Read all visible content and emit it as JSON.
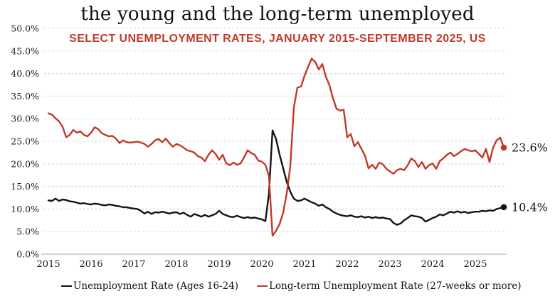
{
  "chart_data": {
    "type": "line",
    "title": "the young and the long-term unemployed",
    "subtitle": "SELECT UNEMPLOYMENT RATES, JANUARY 2015-SEPTEMBER 2025, US",
    "subtitle_color": "#c03a2b",
    "region": "US",
    "x_start": "2015-01",
    "x_end": "2025-09",
    "x_tick_labels": [
      "2015",
      "2016",
      "2017",
      "2018",
      "2019",
      "2020",
      "2021",
      "2022",
      "2023",
      "2024",
      "2025"
    ],
    "y_ticks": [
      0,
      5,
      10,
      15,
      20,
      25,
      30,
      35,
      40,
      45,
      50
    ],
    "y_tick_labels": [
      "0.0%",
      "5.0%",
      "10.0%",
      "15.0%",
      "20.0%",
      "25.0%",
      "30.0%",
      "35.0%",
      "40.0%",
      "45.0%",
      "50.0%"
    ],
    "ylim": [
      0,
      50
    ],
    "grid": "horizontal-dashed",
    "legend_position": "bottom",
    "frequency": "monthly",
    "series": [
      {
        "key": "ages-16-24",
        "name": "Unemployment Rate (Ages 16-24)",
        "color": "#141414",
        "end_label": "10.4%",
        "values": [
          11.9,
          11.8,
          12.3,
          11.8,
          12.1,
          12.0,
          11.7,
          11.6,
          11.4,
          11.2,
          11.3,
          11.1,
          11.0,
          11.2,
          11.1,
          10.9,
          10.8,
          11.0,
          10.9,
          10.7,
          10.6,
          10.4,
          10.4,
          10.2,
          10.1,
          10.0,
          9.6,
          9.0,
          9.4,
          8.9,
          9.3,
          9.2,
          9.4,
          9.2,
          9.0,
          9.2,
          9.3,
          8.9,
          9.2,
          8.7,
          8.3,
          8.9,
          8.6,
          8.3,
          8.7,
          8.3,
          8.6,
          8.9,
          9.6,
          8.9,
          8.6,
          8.3,
          8.2,
          8.5,
          8.2,
          8.0,
          8.2,
          8.0,
          8.1,
          7.9,
          7.7,
          7.3,
          13.5,
          27.4,
          25.5,
          22.0,
          19.0,
          16.0,
          13.8,
          12.3,
          11.8,
          11.9,
          12.3,
          11.9,
          11.5,
          11.2,
          10.7,
          11.0,
          10.4,
          10.0,
          9.4,
          9.0,
          8.7,
          8.5,
          8.4,
          8.6,
          8.3,
          8.2,
          8.4,
          8.1,
          8.3,
          8.0,
          8.2,
          8.0,
          8.1,
          7.9,
          7.8,
          6.9,
          6.5,
          6.8,
          7.5,
          8.0,
          8.6,
          8.4,
          8.3,
          8.0,
          7.2,
          7.6,
          8.0,
          8.3,
          8.8,
          8.6,
          9.0,
          9.4,
          9.2,
          9.5,
          9.2,
          9.4,
          9.1,
          9.3,
          9.4,
          9.4,
          9.6,
          9.5,
          9.7,
          9.6,
          10.0,
          10.2,
          10.4
        ]
      },
      {
        "key": "long-term",
        "name": "Long-term Unemployment Rate (27-weeks or more)",
        "color": "#c03a2b",
        "end_label": "23.6%",
        "values": [
          31.2,
          30.9,
          30.1,
          29.4,
          28.2,
          25.9,
          26.4,
          27.5,
          26.9,
          27.2,
          26.4,
          26.1,
          26.9,
          28.1,
          27.7,
          26.8,
          26.4,
          26.1,
          26.2,
          25.6,
          24.6,
          25.2,
          24.8,
          24.7,
          24.8,
          24.9,
          24.7,
          24.4,
          23.8,
          24.4,
          25.2,
          25.5,
          24.8,
          25.6,
          24.6,
          23.8,
          24.4,
          24.1,
          23.6,
          23.0,
          22.8,
          22.5,
          21.7,
          21.4,
          20.6,
          22.0,
          23.0,
          22.2,
          20.9,
          22.0,
          20.1,
          19.7,
          20.3,
          19.8,
          20.1,
          21.4,
          23.0,
          22.4,
          22.0,
          20.7,
          20.5,
          19.8,
          17.3,
          4.1,
          5.2,
          6.7,
          9.2,
          13.5,
          19.5,
          32.5,
          36.9,
          37.1,
          39.5,
          41.5,
          43.3,
          42.6,
          40.9,
          42.1,
          39.3,
          37.4,
          34.5,
          32.2,
          31.8,
          32.0,
          25.9,
          26.6,
          23.9,
          24.8,
          23.3,
          21.8,
          19.0,
          19.8,
          18.9,
          20.3,
          19.9,
          18.9,
          18.3,
          17.8,
          18.6,
          18.9,
          18.6,
          19.7,
          21.2,
          20.6,
          19.3,
          20.4,
          18.9,
          19.7,
          20.1,
          18.9,
          20.6,
          21.2,
          22.0,
          22.5,
          21.7,
          22.2,
          22.8,
          23.3,
          23.0,
          22.8,
          23.0,
          22.2,
          21.4,
          23.3,
          20.4,
          23.6,
          25.2,
          25.8,
          23.6
        ]
      }
    ]
  },
  "colors": {
    "background": "#ffffff",
    "gridline": "#d8d8d8",
    "axis_line": "#c9c9c9",
    "tick_label": "#1b1b1b",
    "end_label": "#141414"
  }
}
